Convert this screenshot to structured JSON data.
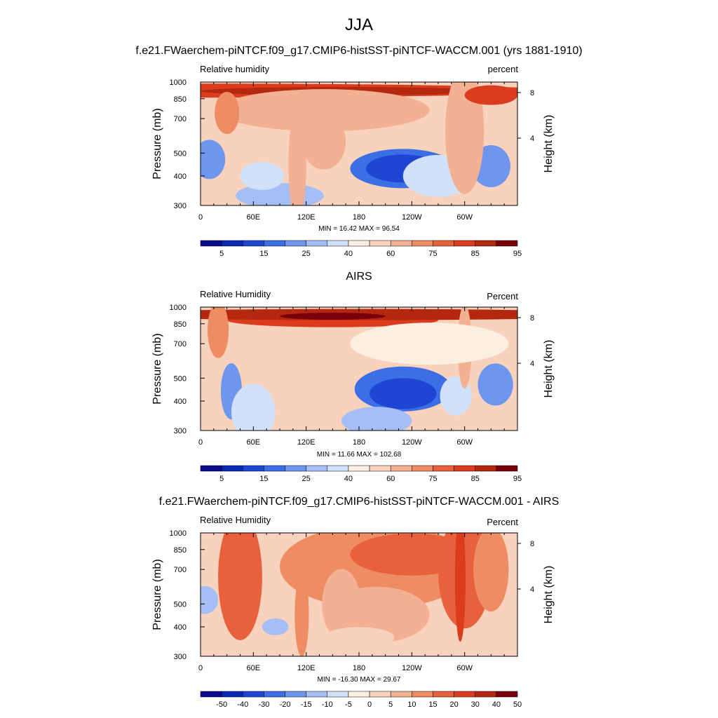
{
  "figure": {
    "title": "JJA"
  },
  "colors": {
    "abs": [
      "#0a0a8c",
      "#0b28b4",
      "#1e46d2",
      "#3c6ee6",
      "#6e96ee",
      "#a5bef5",
      "#d2e1fa",
      "#fdeee2",
      "#f8d2bc",
      "#f4b092",
      "#ee8c64",
      "#e8603c",
      "#dc3c1e",
      "#b4280f",
      "#78000a"
    ],
    "diff": [
      "#0a0a8c",
      "#0b28b4",
      "#1e46d2",
      "#3c6ee6",
      "#6e96ee",
      "#a5bef5",
      "#d2e1fa",
      "#fdeee2",
      "#f8d2bc",
      "#f4b092",
      "#ee8c64",
      "#e8603c",
      "#dc3c1e",
      "#b4280f",
      "#78000a"
    ]
  },
  "panels": [
    {
      "title": "f.e21.FWaerchem-piNTCF.f09_g17.CMIP6-histSST-piNTCF-WACCM.001 (yrs 1881-1910)",
      "left_label": "Relative humidity",
      "right_label": "percent",
      "y_title": "Pressure (mb)",
      "y2_title": "Height (km)",
      "minmax": "MIN =  16.42  MAX =  96.54",
      "colorbar": [
        "5",
        "15",
        "25",
        "40",
        "60",
        "75",
        "85",
        "95"
      ]
    },
    {
      "title": "AIRS",
      "left_label": "Relative Humidity",
      "right_label": "Percent",
      "y_title": "Pressure (mb)",
      "y2_title": "Height (km)",
      "minmax": "MIN =  11.66  MAX = 102.68",
      "colorbar": [
        "5",
        "15",
        "25",
        "40",
        "60",
        "75",
        "85",
        "95"
      ]
    },
    {
      "title": "f.e21.FWaerchem-piNTCF.f09_g17.CMIP6-histSST-piNTCF-WACCM.001 - AIRS",
      "left_label": "Relative Humidity",
      "right_label": "Percent",
      "y_title": "Pressure (mb)",
      "y2_title": "Height (km)",
      "minmax": "MIN = -16.30  MAX =  29.67",
      "colorbar": [
        "-50",
        "-40",
        "-30",
        "-20",
        "-15",
        "-10",
        "-5",
        "0",
        "5",
        "10",
        "15",
        "20",
        "30",
        "40",
        "50"
      ]
    }
  ],
  "chart_data": [
    {
      "type": "heatmap",
      "title": "f.e21.FWaerchem-piNTCF.f09_g17.CMIP6-histSST-piNTCF-WACCM.001 (yrs 1881-1910)",
      "variable": "Relative humidity",
      "units": "percent",
      "x_ticks": [
        "0",
        "60E",
        "120E",
        "180",
        "120W",
        "60W"
      ],
      "y_ticks": [
        "300",
        "400",
        "500",
        "700",
        "850",
        "1000"
      ],
      "y2_ticks": [
        "8",
        "4"
      ],
      "ylim": [
        1000,
        300
      ],
      "min": 16.42,
      "max": 96.54,
      "levels": [
        5,
        10,
        15,
        20,
        25,
        30,
        40,
        50,
        60,
        70,
        75,
        80,
        85,
        90,
        95
      ]
    },
    {
      "type": "heatmap",
      "title": "AIRS",
      "variable": "Relative Humidity",
      "units": "Percent",
      "x_ticks": [
        "0",
        "60E",
        "120E",
        "180",
        "120W",
        "60W"
      ],
      "y_ticks": [
        "300",
        "400",
        "500",
        "700",
        "850",
        "1000"
      ],
      "y2_ticks": [
        "8",
        "4"
      ],
      "ylim": [
        1000,
        300
      ],
      "min": 11.66,
      "max": 102.68,
      "levels": [
        5,
        10,
        15,
        20,
        25,
        30,
        40,
        50,
        60,
        70,
        75,
        80,
        85,
        90,
        95
      ]
    },
    {
      "type": "heatmap",
      "title": "f.e21.FWaerchem-piNTCF.f09_g17.CMIP6-histSST-piNTCF-WACCM.001 - AIRS",
      "variable": "Relative Humidity",
      "units": "Percent",
      "x_ticks": [
        "0",
        "60E",
        "120E",
        "180",
        "120W",
        "60W"
      ],
      "y_ticks": [
        "300",
        "400",
        "500",
        "700",
        "850",
        "1000"
      ],
      "y2_ticks": [
        "8",
        "4"
      ],
      "ylim": [
        1000,
        300
      ],
      "min": -16.3,
      "max": 29.67,
      "levels": [
        -50,
        -40,
        -30,
        -20,
        -15,
        -10,
        -5,
        0,
        5,
        10,
        15,
        20,
        30,
        40,
        50
      ]
    }
  ]
}
